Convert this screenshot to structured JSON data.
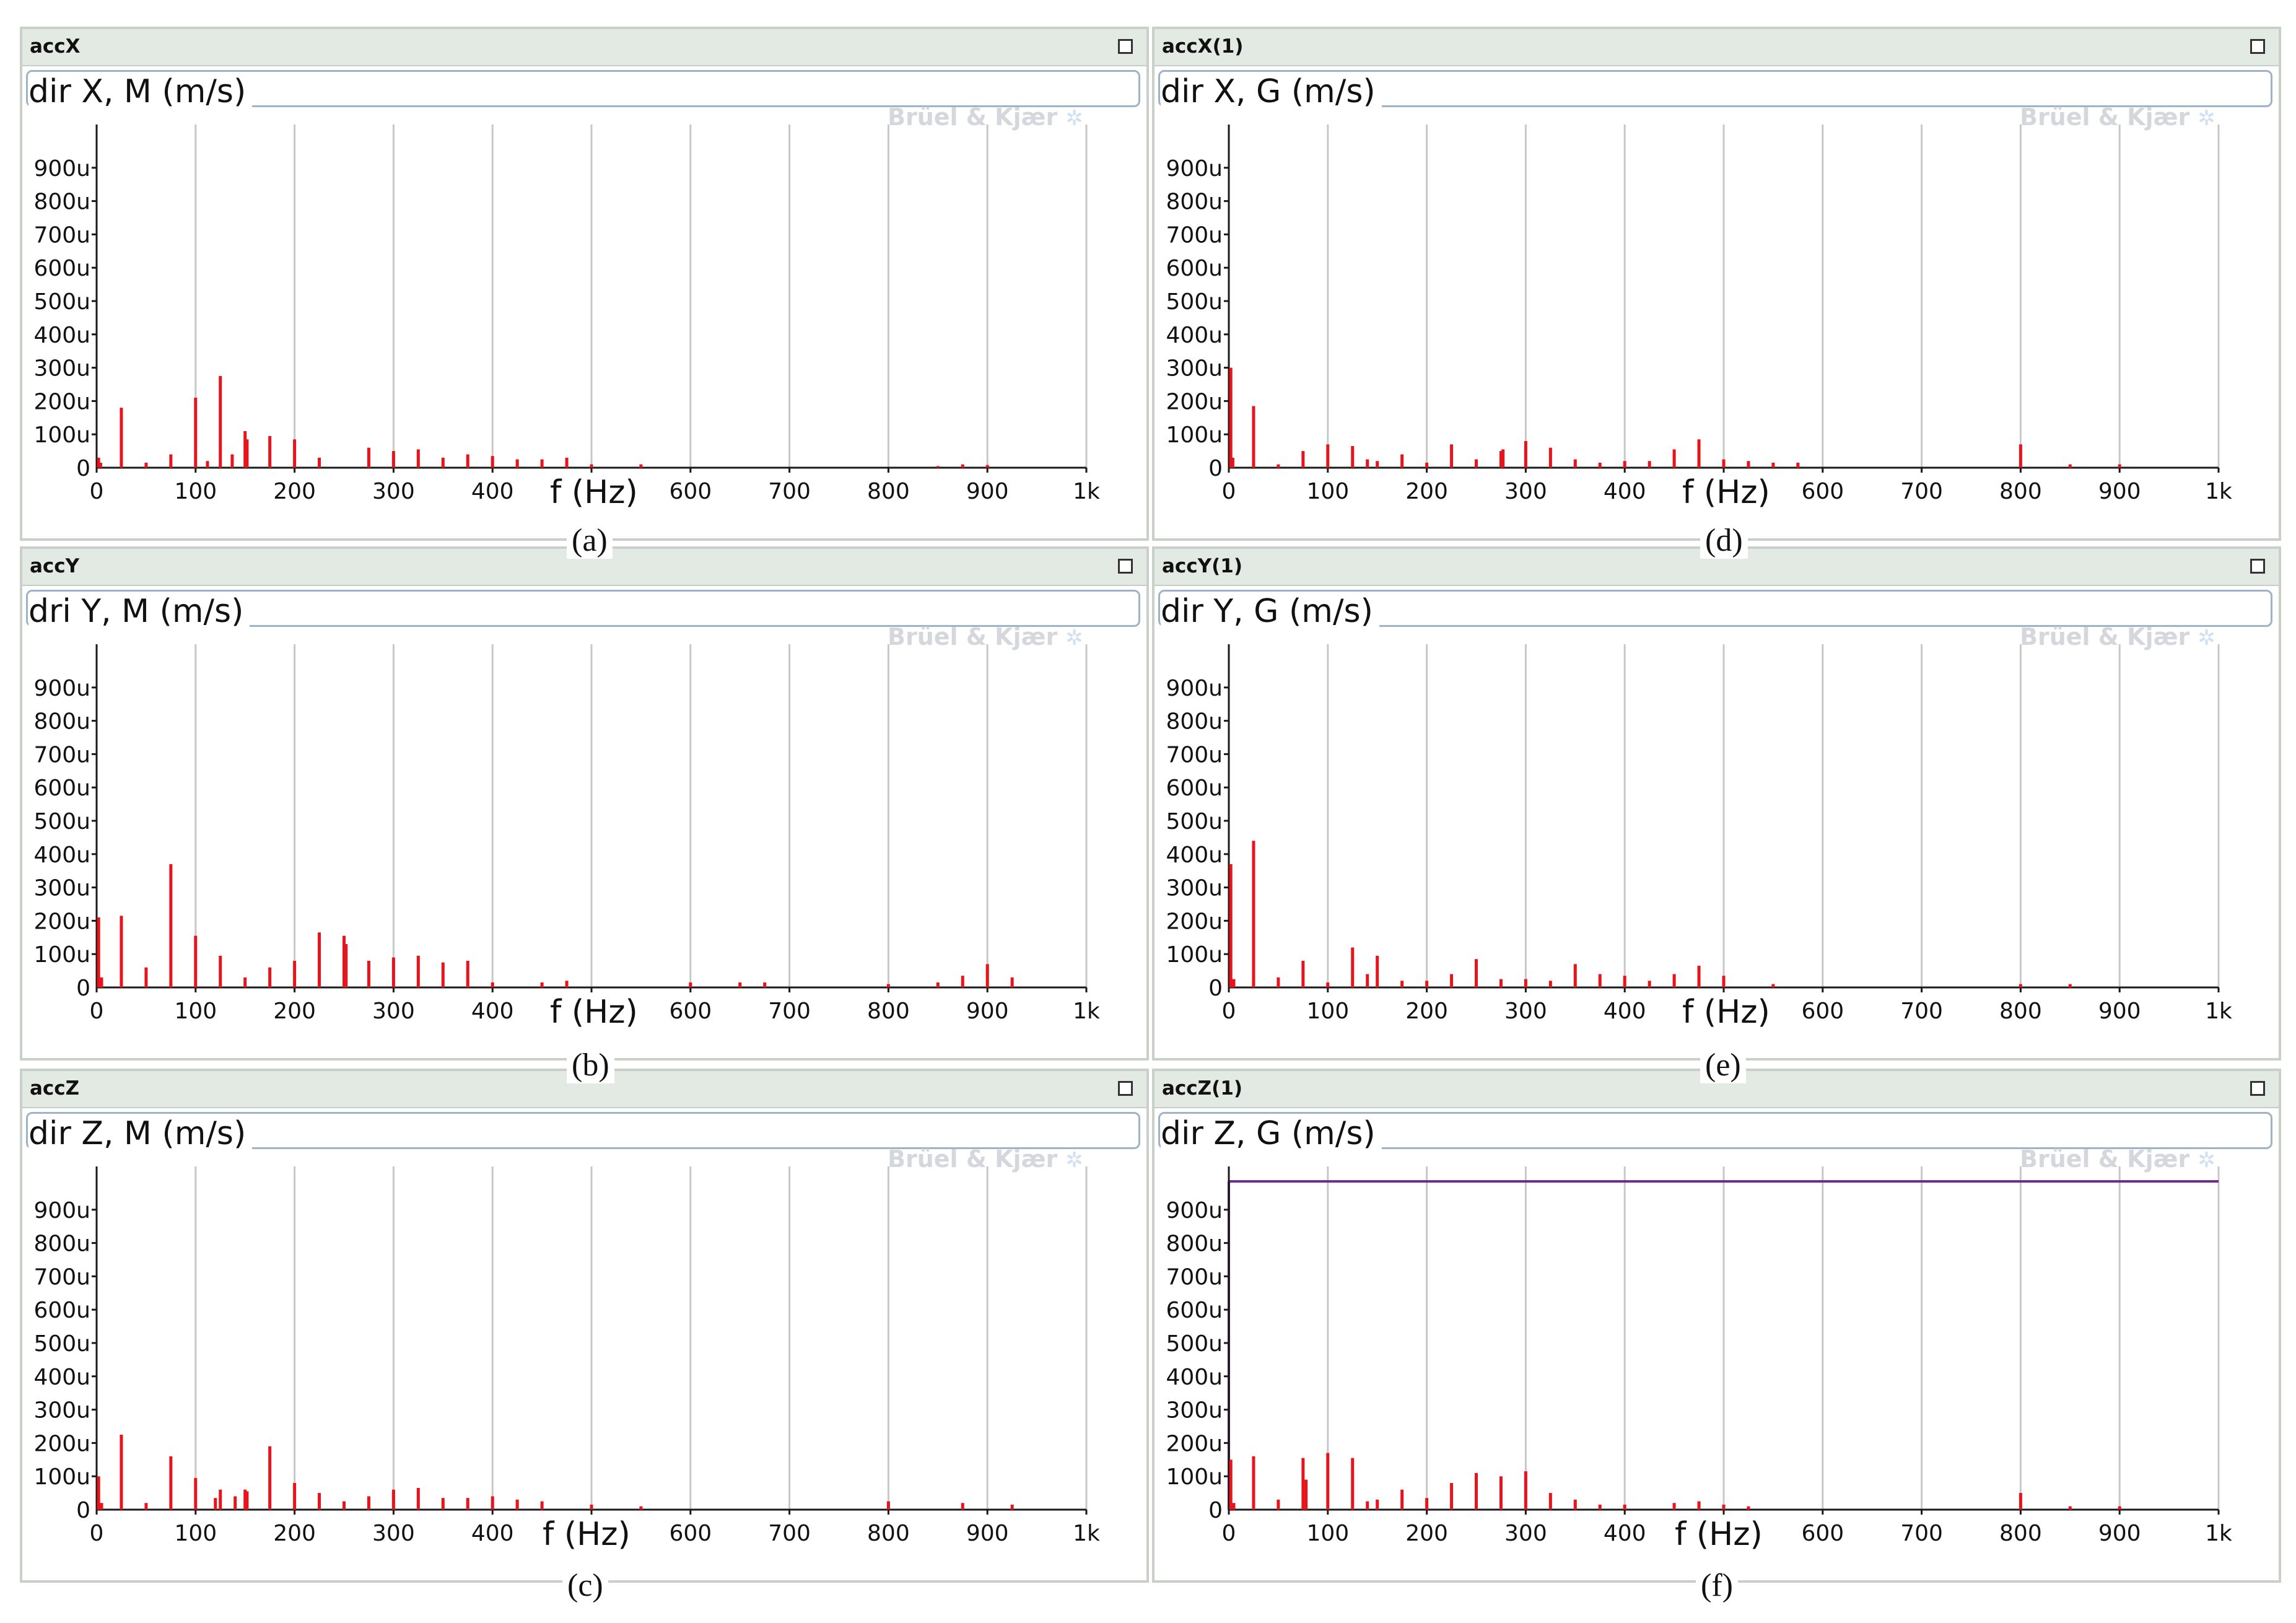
{
  "brand_logo": "Brüel & Kjær",
  "x_axis_title": "f (Hz)",
  "colors": {
    "bars": "#e8141c",
    "axis": "#1a1a1a",
    "grid": "#c8c8c8",
    "titlebar": "#e3e9e3",
    "ref_line": "#6b2a8c"
  },
  "panels": [
    {
      "window_title": "accX",
      "caption": "(a)",
      "chart_title": "dir X, M (m/s)"
    },
    {
      "window_title": "accY",
      "caption": "(b)",
      "chart_title": "dri Y, M  (m/s)"
    },
    {
      "window_title": "accZ",
      "caption": "(c)",
      "chart_title": "dir Z, M  (m/s)"
    },
    {
      "window_title": "accX(1)",
      "caption": "(d)",
      "chart_title": "dir X, G  (m/s)"
    },
    {
      "window_title": "accY(1)",
      "caption": "(e)",
      "chart_title": "dir Y, G  (m/s)"
    },
    {
      "window_title": "accZ(1)",
      "caption": "(f)",
      "chart_title": "dir Z, G  (m/s)"
    }
  ],
  "chart_data": [
    {
      "panel": "accX",
      "type": "bar",
      "title": "dir X, M (m/s)",
      "xlabel": "f (Hz)",
      "ylabel": "",
      "xlim": [
        0,
        1000
      ],
      "ylim": [
        0,
        1000
      ],
      "x_tick_labels": [
        "0",
        "100",
        "200",
        "300",
        "400",
        "500",
        "600",
        "700",
        "800",
        "900",
        "1k"
      ],
      "y_tick_labels": [
        "100u",
        "200u",
        "300u",
        "400u",
        "500u",
        "600u",
        "700u",
        "800u",
        "900u"
      ],
      "grid": true,
      "x": [
        2,
        4,
        25,
        50,
        75,
        100,
        112,
        125,
        137,
        150,
        152,
        175,
        200,
        225,
        275,
        300,
        325,
        350,
        375,
        400,
        425,
        450,
        475,
        500,
        550,
        850,
        875,
        900
      ],
      "values": [
        30,
        15,
        180,
        15,
        40,
        210,
        20,
        275,
        40,
        110,
        85,
        95,
        85,
        30,
        60,
        50,
        55,
        30,
        40,
        35,
        25,
        25,
        30,
        10,
        10,
        5,
        10,
        8
      ]
    },
    {
      "panel": "accY",
      "type": "bar",
      "title": "dri Y, M  (m/s)",
      "xlabel": "f (Hz)",
      "ylabel": "",
      "xlim": [
        0,
        1000
      ],
      "ylim": [
        0,
        1000
      ],
      "x_tick_labels": [
        "0",
        "100",
        "200",
        "300",
        "400",
        "500",
        "600",
        "700",
        "800",
        "900",
        "1k"
      ],
      "y_tick_labels": [
        "100u",
        "200u",
        "300u",
        "400u",
        "500u",
        "600u",
        "700u",
        "800u",
        "900u"
      ],
      "grid": true,
      "x": [
        2,
        5,
        25,
        50,
        75,
        100,
        125,
        150,
        175,
        200,
        225,
        250,
        252,
        275,
        300,
        325,
        350,
        375,
        400,
        450,
        475,
        600,
        650,
        675,
        800,
        850,
        875,
        900,
        925
      ],
      "values": [
        210,
        30,
        215,
        60,
        370,
        155,
        95,
        30,
        60,
        80,
        165,
        155,
        130,
        80,
        90,
        95,
        75,
        80,
        15,
        15,
        20,
        15,
        15,
        15,
        10,
        15,
        35,
        70,
        30
      ]
    },
    {
      "panel": "accZ",
      "type": "bar",
      "title": "dir Z, M  (m/s)",
      "xlabel": "f (Hz)",
      "ylabel": "",
      "xlim": [
        0,
        1000
      ],
      "ylim": [
        0,
        1000
      ],
      "x_tick_labels": [
        "0",
        "100",
        "200",
        "300",
        "400",
        "500",
        "600",
        "700",
        "800",
        "900",
        "1k"
      ],
      "y_tick_labels": [
        "100u",
        "200u",
        "300u",
        "400u",
        "500u",
        "600u",
        "700u",
        "800u",
        "900u"
      ],
      "grid": true,
      "x": [
        2,
        5,
        25,
        50,
        75,
        100,
        120,
        125,
        140,
        150,
        152,
        175,
        200,
        225,
        250,
        275,
        300,
        325,
        350,
        375,
        400,
        425,
        450,
        500,
        550,
        800,
        875,
        925
      ],
      "values": [
        100,
        20,
        225,
        20,
        160,
        95,
        35,
        60,
        40,
        60,
        55,
        190,
        80,
        50,
        25,
        40,
        60,
        65,
        35,
        35,
        40,
        30,
        25,
        15,
        10,
        25,
        20,
        15
      ]
    },
    {
      "panel": "accX(1)",
      "type": "bar",
      "title": "dir X, G  (m/s)",
      "xlabel": "f (Hz)",
      "ylabel": "",
      "xlim": [
        0,
        1000
      ],
      "ylim": [
        0,
        1000
      ],
      "x_tick_labels": [
        "0",
        "100",
        "200",
        "300",
        "400",
        "500",
        "600",
        "700",
        "800",
        "900",
        "1k"
      ],
      "y_tick_labels": [
        "100u",
        "200u",
        "300u",
        "400u",
        "500u",
        "600u",
        "700u",
        "800u",
        "900u"
      ],
      "grid": true,
      "x": [
        2,
        4,
        25,
        50,
        75,
        100,
        125,
        140,
        150,
        175,
        200,
        225,
        250,
        275,
        277,
        300,
        325,
        350,
        375,
        400,
        425,
        450,
        475,
        500,
        525,
        550,
        575,
        800,
        850,
        900
      ],
      "values": [
        300,
        30,
        185,
        10,
        50,
        70,
        65,
        25,
        20,
        40,
        15,
        70,
        25,
        50,
        55,
        80,
        60,
        25,
        15,
        20,
        20,
        55,
        85,
        25,
        20,
        15,
        15,
        70,
        10,
        10
      ]
    },
    {
      "panel": "accY(1)",
      "type": "bar",
      "title": "dir Y, G  (m/s)",
      "xlabel": "f (Hz)",
      "ylabel": "",
      "xlim": [
        0,
        1000
      ],
      "ylim": [
        0,
        1000
      ],
      "x_tick_labels": [
        "0",
        "100",
        "200",
        "300",
        "400",
        "500",
        "600",
        "700",
        "800",
        "900",
        "1k"
      ],
      "y_tick_labels": [
        "100u",
        "200u",
        "300u",
        "400u",
        "500u",
        "600u",
        "700u",
        "800u",
        "900u"
      ],
      "grid": true,
      "x": [
        2,
        5,
        25,
        50,
        75,
        100,
        125,
        140,
        150,
        175,
        200,
        225,
        250,
        275,
        300,
        325,
        350,
        375,
        400,
        425,
        450,
        475,
        500,
        550,
        800,
        850
      ],
      "values": [
        370,
        25,
        440,
        30,
        80,
        15,
        120,
        40,
        95,
        20,
        20,
        40,
        85,
        25,
        25,
        20,
        70,
        40,
        35,
        20,
        40,
        65,
        35,
        10,
        10,
        10
      ]
    },
    {
      "panel": "accZ(1)",
      "type": "bar",
      "title": "dir Z, G  (m/s)",
      "xlabel": "f (Hz)",
      "ylabel": "",
      "xlim": [
        0,
        1000
      ],
      "ylim": [
        0,
        1000
      ],
      "x_tick_labels": [
        "0",
        "100",
        "200",
        "300",
        "400",
        "500",
        "600",
        "700",
        "800",
        "900",
        "1k"
      ],
      "y_tick_labels": [
        "100u",
        "200u",
        "300u",
        "400u",
        "500u",
        "600u",
        "700u",
        "800u",
        "900u"
      ],
      "grid": true,
      "reference_line": 985,
      "x": [
        2,
        5,
        25,
        50,
        75,
        78,
        100,
        125,
        140,
        150,
        175,
        200,
        225,
        250,
        275,
        300,
        325,
        350,
        375,
        400,
        450,
        475,
        500,
        525,
        800,
        850,
        900
      ],
      "values": [
        150,
        20,
        160,
        30,
        155,
        90,
        170,
        155,
        25,
        30,
        60,
        35,
        80,
        110,
        100,
        115,
        50,
        30,
        15,
        15,
        20,
        25,
        15,
        10,
        50,
        10,
        10
      ]
    }
  ]
}
